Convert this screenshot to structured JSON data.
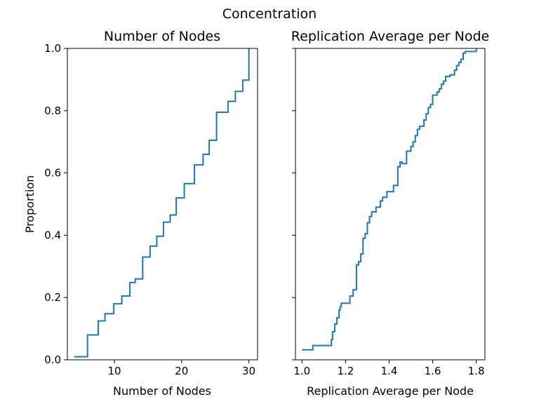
{
  "suptitle": "Concentration",
  "chart_data": [
    {
      "type": "line",
      "drawstyle": "steps-post (empirical CDF)",
      "title": "Number of Nodes",
      "xlabel": "Number of Nodes",
      "ylabel": "Proportion",
      "xlim": [
        3.0,
        31.3
      ],
      "ylim": [
        0,
        1.0
      ],
      "xticks": [
        "10",
        "20",
        "30"
      ],
      "yticks": [
        "0.0",
        "0.2",
        "0.4",
        "0.6",
        "0.8",
        "1.0"
      ],
      "color": "#1f77b4",
      "series": [
        {
          "x": [
            4,
            6,
            7.6,
            8.6,
            9.9,
            11.1,
            12.3,
            13.1,
            14.2,
            15.3,
            16.3,
            17.3,
            18.3,
            19.2,
            20.4,
            21.9,
            23.2,
            24.1,
            25.2,
            26.9,
            28.0,
            29.1,
            30.0
          ],
          "y": [
            0.01,
            0.08,
            0.125,
            0.148,
            0.18,
            0.205,
            0.248,
            0.26,
            0.33,
            0.365,
            0.397,
            0.442,
            0.465,
            0.52,
            0.566,
            0.626,
            0.66,
            0.705,
            0.795,
            0.83,
            0.862,
            0.898,
            0.932
          ]
        }
      ]
    },
    {
      "type": "line",
      "drawstyle": "steps-post (empirical CDF)",
      "title": "Replication Average per Node",
      "xlabel": "Replication Average per Node",
      "ylabel": "",
      "xlim": [
        0.97,
        1.84
      ],
      "ylim": [
        0,
        1.0
      ],
      "xticks": [
        "1.0",
        "1.2",
        "1.4",
        "1.6",
        "1.8"
      ],
      "yticks": [
        "",
        "",
        "",
        "",
        "",
        ""
      ],
      "color": "#1f77b4",
      "series": [
        {
          "x": [
            1.0,
            1.05,
            1.135,
            1.14,
            1.15,
            1.16,
            1.17,
            1.175,
            1.18,
            1.22,
            1.235,
            1.25,
            1.26,
            1.27,
            1.28,
            1.29,
            1.3,
            1.31,
            1.32,
            1.34,
            1.36,
            1.37,
            1.39,
            1.42,
            1.44,
            1.45,
            1.46,
            1.48,
            1.5,
            1.51,
            1.52,
            1.53,
            1.54,
            1.56,
            1.57,
            1.58,
            1.59,
            1.6,
            1.62,
            1.63,
            1.64,
            1.65,
            1.66,
            1.68,
            1.7,
            1.71,
            1.72,
            1.73,
            1.74,
            1.75,
            1.8
          ],
          "y": [
            0.032,
            0.046,
            0.065,
            0.09,
            0.115,
            0.135,
            0.16,
            0.17,
            0.182,
            0.205,
            0.225,
            0.305,
            0.315,
            0.34,
            0.39,
            0.405,
            0.44,
            0.46,
            0.475,
            0.49,
            0.51,
            0.522,
            0.54,
            0.56,
            0.62,
            0.635,
            0.63,
            0.67,
            0.685,
            0.7,
            0.72,
            0.74,
            0.75,
            0.77,
            0.79,
            0.81,
            0.82,
            0.85,
            0.86,
            0.87,
            0.885,
            0.895,
            0.91,
            0.915,
            0.93,
            0.945,
            0.955,
            0.965,
            0.985,
            0.99,
            1.0
          ]
        }
      ]
    }
  ]
}
